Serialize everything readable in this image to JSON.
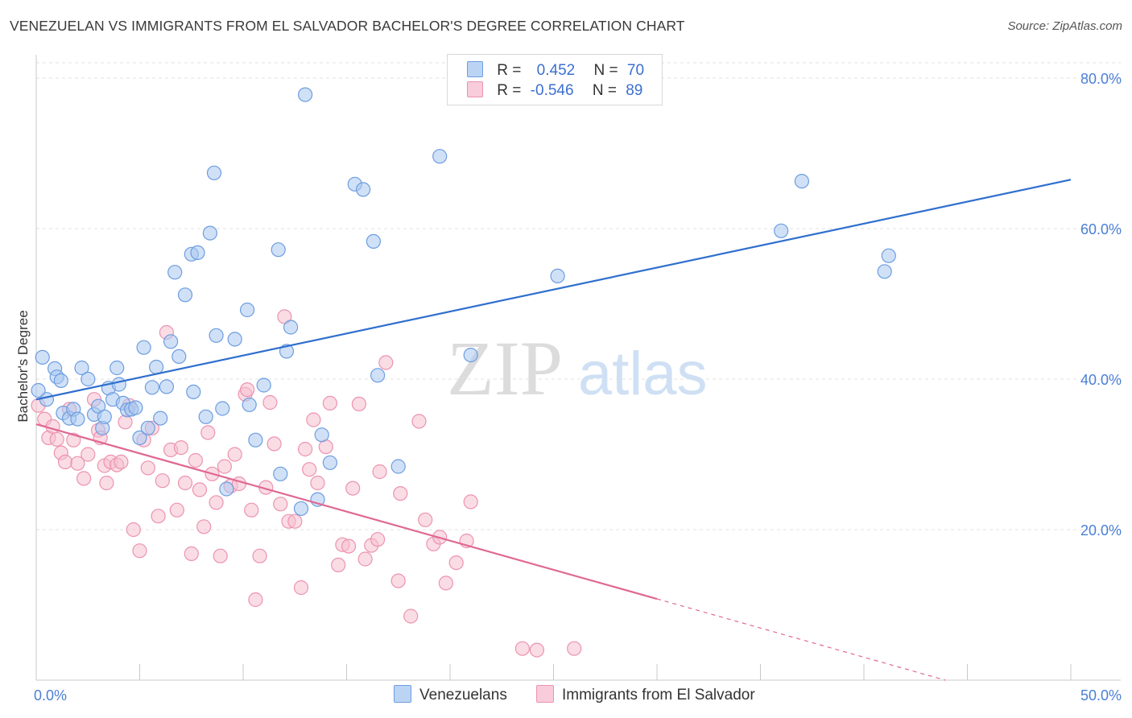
{
  "title": "VENEZUELAN VS IMMIGRANTS FROM EL SALVADOR BACHELOR'S DEGREE CORRELATION CHART",
  "source": "Source: ZipAtlas.com",
  "watermark": {
    "zip": "ZIP",
    "atlas": "atlas"
  },
  "legend": {
    "rows": [
      {
        "r_label": "R =",
        "r_value": "0.452",
        "n_label": "N =",
        "n_value": "70"
      },
      {
        "r_label": "R =",
        "r_value": "-0.546",
        "n_label": "N =",
        "n_value": "89"
      }
    ]
  },
  "bottom_legend": [
    "Venezuelans",
    "Immigrants from El Salvador"
  ],
  "colors": {
    "blue_fill": "#a9c8f0",
    "blue_stroke": "#6d9de0",
    "blue_line": "#2f6fce",
    "pink_fill": "#f6bfd0",
    "pink_stroke": "#ec93b0",
    "pink_line": "#e06893",
    "tick_text": "#4a7fd6",
    "grid": "#e2e2e2"
  },
  "chart_data": {
    "type": "scatter",
    "title": "VENEZUELAN VS IMMIGRANTS FROM EL SALVADOR BACHELOR'S DEGREE CORRELATION CHART",
    "xlabel": "",
    "ylabel": "Bachelor's Degree",
    "xlim": [
      0,
      50
    ],
    "ylim": [
      0,
      80
    ],
    "x_tick_labels": [
      "0.0%",
      "50.0%"
    ],
    "y_ticks": [
      20,
      40,
      60,
      80
    ],
    "y_tick_labels": [
      "20.0%",
      "40.0%",
      "60.0%",
      "80.0%"
    ],
    "grid": true,
    "legend_position": "top-center",
    "series": [
      {
        "name": "Venezuelans",
        "r": 0.452,
        "n": 70,
        "trend": {
          "x": [
            0,
            50
          ],
          "y": [
            37.3,
            66.5
          ]
        },
        "points": [
          [
            0.3,
            42.9
          ],
          [
            0.5,
            37.3
          ],
          [
            0.9,
            41.4
          ],
          [
            1.0,
            40.3
          ],
          [
            1.2,
            39.8
          ],
          [
            1.3,
            35.5
          ],
          [
            1.6,
            34.8
          ],
          [
            1.8,
            36.0
          ],
          [
            2.0,
            34.7
          ],
          [
            2.2,
            41.5
          ],
          [
            2.5,
            40.0
          ],
          [
            2.8,
            35.3
          ],
          [
            3.0,
            36.4
          ],
          [
            3.2,
            33.5
          ],
          [
            3.3,
            35.0
          ],
          [
            3.5,
            38.8
          ],
          [
            3.7,
            37.3
          ],
          [
            3.9,
            41.5
          ],
          [
            4.0,
            39.3
          ],
          [
            4.2,
            36.8
          ],
          [
            4.4,
            35.9
          ],
          [
            4.6,
            36.0
          ],
          [
            4.8,
            36.2
          ],
          [
            5.0,
            32.2
          ],
          [
            5.2,
            44.2
          ],
          [
            5.4,
            33.5
          ],
          [
            5.6,
            38.9
          ],
          [
            5.8,
            41.6
          ],
          [
            6.0,
            34.8
          ],
          [
            6.3,
            39.0
          ],
          [
            6.5,
            45.0
          ],
          [
            6.7,
            54.2
          ],
          [
            6.9,
            43.0
          ],
          [
            7.2,
            51.2
          ],
          [
            7.5,
            56.6
          ],
          [
            7.8,
            56.8
          ],
          [
            7.6,
            38.3
          ],
          [
            8.2,
            35.0
          ],
          [
            8.4,
            59.4
          ],
          [
            8.6,
            67.4
          ],
          [
            8.7,
            45.8
          ],
          [
            9.0,
            36.1
          ],
          [
            9.2,
            25.4
          ],
          [
            9.6,
            45.3
          ],
          [
            10.2,
            49.2
          ],
          [
            10.3,
            36.6
          ],
          [
            10.6,
            31.9
          ],
          [
            11.0,
            39.2
          ],
          [
            11.7,
            57.2
          ],
          [
            11.8,
            27.4
          ],
          [
            12.1,
            43.7
          ],
          [
            12.3,
            46.9
          ],
          [
            12.8,
            22.8
          ],
          [
            13.0,
            77.8
          ],
          [
            13.6,
            24.0
          ],
          [
            13.8,
            32.6
          ],
          [
            14.2,
            28.9
          ],
          [
            15.4,
            65.9
          ],
          [
            15.8,
            65.2
          ],
          [
            16.3,
            58.3
          ],
          [
            16.5,
            40.5
          ],
          [
            17.5,
            28.4
          ],
          [
            19.5,
            69.6
          ],
          [
            21.0,
            43.2
          ],
          [
            25.2,
            53.7
          ],
          [
            36.0,
            59.7
          ],
          [
            37.0,
            66.3
          ],
          [
            41.0,
            54.3
          ],
          [
            41.2,
            56.4
          ],
          [
            0.1,
            38.5
          ]
        ]
      },
      {
        "name": "Immigrants from El Salvador",
        "r": -0.546,
        "n": 89,
        "trend": {
          "x": [
            0,
            30
          ],
          "y": [
            34.0,
            10.8
          ]
        },
        "trend_dashed": {
          "x": [
            30,
            50
          ],
          "y": [
            10.8,
            -4.7
          ]
        },
        "points": [
          [
            0.1,
            36.5
          ],
          [
            0.4,
            34.7
          ],
          [
            0.6,
            32.2
          ],
          [
            0.8,
            33.7
          ],
          [
            1.0,
            32.0
          ],
          [
            1.2,
            30.2
          ],
          [
            1.4,
            29.0
          ],
          [
            1.6,
            36.0
          ],
          [
            1.8,
            31.9
          ],
          [
            2.0,
            28.8
          ],
          [
            2.3,
            26.8
          ],
          [
            2.5,
            30.0
          ],
          [
            2.8,
            37.3
          ],
          [
            3.0,
            33.2
          ],
          [
            3.1,
            32.2
          ],
          [
            3.3,
            28.5
          ],
          [
            3.4,
            26.2
          ],
          [
            3.6,
            29.0
          ],
          [
            3.9,
            28.6
          ],
          [
            4.1,
            29.0
          ],
          [
            4.3,
            34.3
          ],
          [
            4.5,
            36.5
          ],
          [
            4.7,
            20.0
          ],
          [
            5.0,
            17.2
          ],
          [
            5.2,
            31.9
          ],
          [
            5.4,
            28.2
          ],
          [
            5.6,
            33.5
          ],
          [
            5.9,
            21.8
          ],
          [
            6.1,
            26.5
          ],
          [
            6.3,
            46.2
          ],
          [
            6.5,
            30.6
          ],
          [
            6.8,
            22.6
          ],
          [
            7.0,
            30.9
          ],
          [
            7.2,
            26.2
          ],
          [
            7.5,
            16.8
          ],
          [
            7.7,
            29.2
          ],
          [
            7.9,
            25.3
          ],
          [
            8.1,
            20.4
          ],
          [
            8.3,
            32.9
          ],
          [
            8.5,
            27.4
          ],
          [
            8.7,
            23.6
          ],
          [
            8.9,
            16.5
          ],
          [
            9.1,
            28.4
          ],
          [
            9.4,
            25.8
          ],
          [
            9.6,
            30.0
          ],
          [
            9.8,
            26.1
          ],
          [
            10.1,
            38.0
          ],
          [
            10.2,
            38.6
          ],
          [
            10.4,
            22.6
          ],
          [
            10.6,
            10.7
          ],
          [
            10.8,
            16.5
          ],
          [
            11.1,
            25.6
          ],
          [
            11.3,
            36.9
          ],
          [
            11.5,
            31.4
          ],
          [
            11.8,
            23.4
          ],
          [
            12.0,
            48.3
          ],
          [
            12.2,
            21.1
          ],
          [
            12.5,
            21.1
          ],
          [
            12.8,
            12.3
          ],
          [
            13.0,
            30.7
          ],
          [
            13.2,
            28.0
          ],
          [
            13.4,
            34.6
          ],
          [
            13.6,
            26.2
          ],
          [
            14.0,
            31.0
          ],
          [
            14.2,
            36.8
          ],
          [
            14.6,
            15.3
          ],
          [
            14.8,
            18.0
          ],
          [
            15.1,
            17.8
          ],
          [
            15.3,
            25.5
          ],
          [
            15.6,
            36.7
          ],
          [
            15.9,
            16.1
          ],
          [
            16.2,
            17.9
          ],
          [
            16.5,
            18.7
          ],
          [
            16.6,
            27.7
          ],
          [
            16.9,
            42.2
          ],
          [
            17.5,
            13.2
          ],
          [
            17.6,
            24.8
          ],
          [
            18.1,
            8.5
          ],
          [
            18.5,
            34.4
          ],
          [
            18.8,
            21.3
          ],
          [
            19.2,
            18.1
          ],
          [
            19.5,
            19.0
          ],
          [
            19.8,
            12.9
          ],
          [
            20.3,
            15.6
          ],
          [
            20.8,
            18.5
          ],
          [
            21.0,
            23.7
          ],
          [
            23.5,
            4.2
          ],
          [
            24.2,
            4.0
          ],
          [
            26.0,
            4.2
          ]
        ]
      }
    ]
  }
}
